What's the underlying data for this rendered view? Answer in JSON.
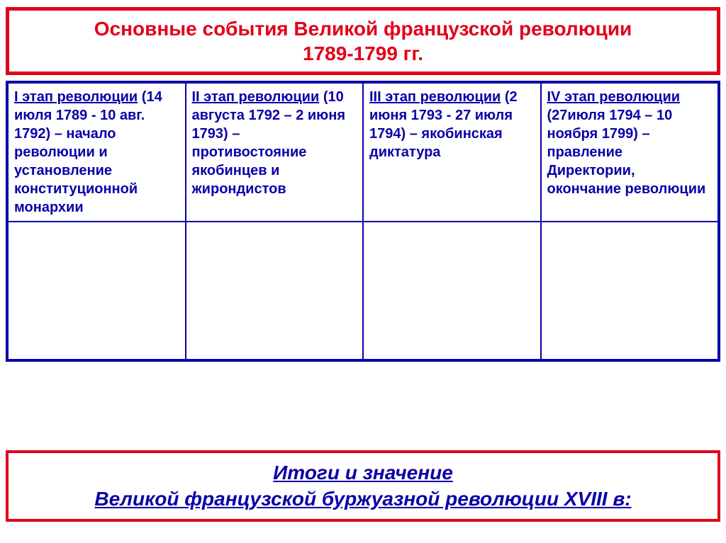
{
  "colors": {
    "red": "#e2001a",
    "blue": "#0a00a8",
    "text_blue": "#0a00a8",
    "white": "#ffffff"
  },
  "title": {
    "line1": "Основные события Великой французской революции",
    "line2": "1789-1799 гг.",
    "fontsize": 28,
    "border_color": "#e2001a",
    "text_color": "#e2001a"
  },
  "table": {
    "border_color": "#0a00a8",
    "cell_border_color": "#0a00a8",
    "fontsize": 20,
    "text_color": "#0a00a8",
    "phases": [
      {
        "heading": "I этап революции",
        "dates": "(14 июля 1789 - 10 авг. 1792)",
        "dash": " – ",
        "desc": "начало революции и установление конституционной монархии"
      },
      {
        "heading": "II этап революции",
        "dates": "(10 августа 1792  – 2 июня 1793)",
        "dash": " – ",
        "desc": "противостояние якобинцев и жирондистов"
      },
      {
        "heading": "III этап революции",
        "dates": "(2 июня 1793 - 27 июля 1794)",
        "dash": " – ",
        "desc": "якобинская диктатура"
      },
      {
        "heading": "IV этап революции",
        "dates": "(27июля 1794 – 10 ноября 1799)",
        "dash": " – ",
        "desc": "правление Директории, окончание революции"
      }
    ]
  },
  "footer": {
    "line1": "Итоги и значение",
    "line2": "Великой французской буржуазной революции XVIII в:",
    "fontsize": 28,
    "border_color": "#e2001a",
    "text_color": "#0a00a8"
  }
}
